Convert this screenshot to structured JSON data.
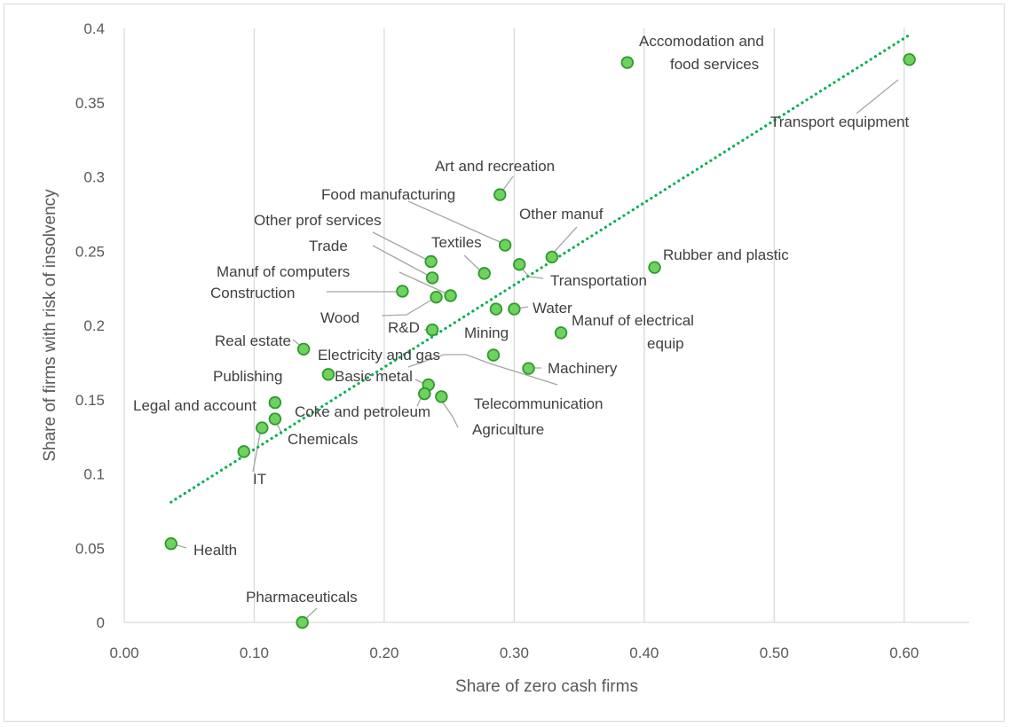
{
  "chart_data": {
    "type": "scatter",
    "title": "",
    "xlabel": "Share of zero cash firms",
    "ylabel": "Share of firms with risk of insolvency",
    "xlim": [
      0,
      0.65
    ],
    "ylim": [
      0,
      0.4
    ],
    "x_ticks": [
      "0.00",
      "0.10",
      "0.20",
      "0.30",
      "0.40",
      "0.50",
      "0.60"
    ],
    "y_ticks": [
      "0",
      "0.05",
      "0.1",
      "0.15",
      "0.2",
      "0.25",
      "0.3",
      "0.35",
      "0.4"
    ],
    "grid": "vertical",
    "marker_color": "#6fd160",
    "marker_edge_color": "#2e9a2b",
    "trendline": {
      "style": "dotted",
      "color": "#00b050",
      "from": [
        0.036,
        0.081
      ],
      "to": [
        0.603,
        0.395
      ]
    },
    "points": [
      {
        "label": "Accomodation and food services",
        "x": 0.387,
        "y": 0.377
      },
      {
        "label": "Transport equipment",
        "x": 0.604,
        "y": 0.379
      },
      {
        "label": "Art and recreation",
        "x": 0.289,
        "y": 0.288
      },
      {
        "label": "Food manufacturing",
        "x": 0.293,
        "y": 0.254
      },
      {
        "label": "Other manuf",
        "x": 0.329,
        "y": 0.246
      },
      {
        "label": "Other prof services",
        "x": 0.236,
        "y": 0.243
      },
      {
        "label": "Trade",
        "x": 0.237,
        "y": 0.232
      },
      {
        "label": "Textiles",
        "x": 0.277,
        "y": 0.235
      },
      {
        "label": "Transportation",
        "x": 0.304,
        "y": 0.241
      },
      {
        "label": "Rubber and plastic",
        "x": 0.408,
        "y": 0.239
      },
      {
        "label": "Manuf of computers",
        "x": 0.251,
        "y": 0.22
      },
      {
        "label": "Construction",
        "x": 0.214,
        "y": 0.223
      },
      {
        "label": "Wood",
        "x": 0.24,
        "y": 0.219
      },
      {
        "label": "Water",
        "x": 0.3,
        "y": 0.211
      },
      {
        "label": "Mining",
        "x": 0.286,
        "y": 0.211
      },
      {
        "label": "R&D",
        "x": 0.237,
        "y": 0.197
      },
      {
        "label": "Manuf of electrical equip",
        "x": 0.336,
        "y": 0.195
      },
      {
        "label": "Real estate",
        "x": 0.138,
        "y": 0.184
      },
      {
        "label": "Electricity and gas",
        "x": 0.284,
        "y": 0.18
      },
      {
        "label": "Machinery",
        "x": 0.311,
        "y": 0.171
      },
      {
        "label": "Publishing",
        "x": 0.157,
        "y": 0.167
      },
      {
        "label": "Basic metal",
        "x": 0.234,
        "y": 0.16
      },
      {
        "label": "Coke and petroleum",
        "x": 0.231,
        "y": 0.154
      },
      {
        "label": "Telecommunication",
        "x": 0.244,
        "y": 0.152
      },
      {
        "label": "Agriculture",
        "x": 0.231,
        "y": 0.154
      },
      {
        "label": "Legal and account",
        "x": 0.116,
        "y": 0.148
      },
      {
        "label": "Chemicals",
        "x": 0.116,
        "y": 0.137
      },
      {
        "label": "IT",
        "x": 0.106,
        "y": 0.131
      },
      {
        "label": "Health",
        "x": 0.036,
        "y": 0.053
      },
      {
        "label": "Pharmaceuticals",
        "x": 0.137,
        "y": 0.0
      }
    ],
    "unlabeled_points": [
      {
        "x": 0.092,
        "y": 0.115
      }
    ]
  }
}
